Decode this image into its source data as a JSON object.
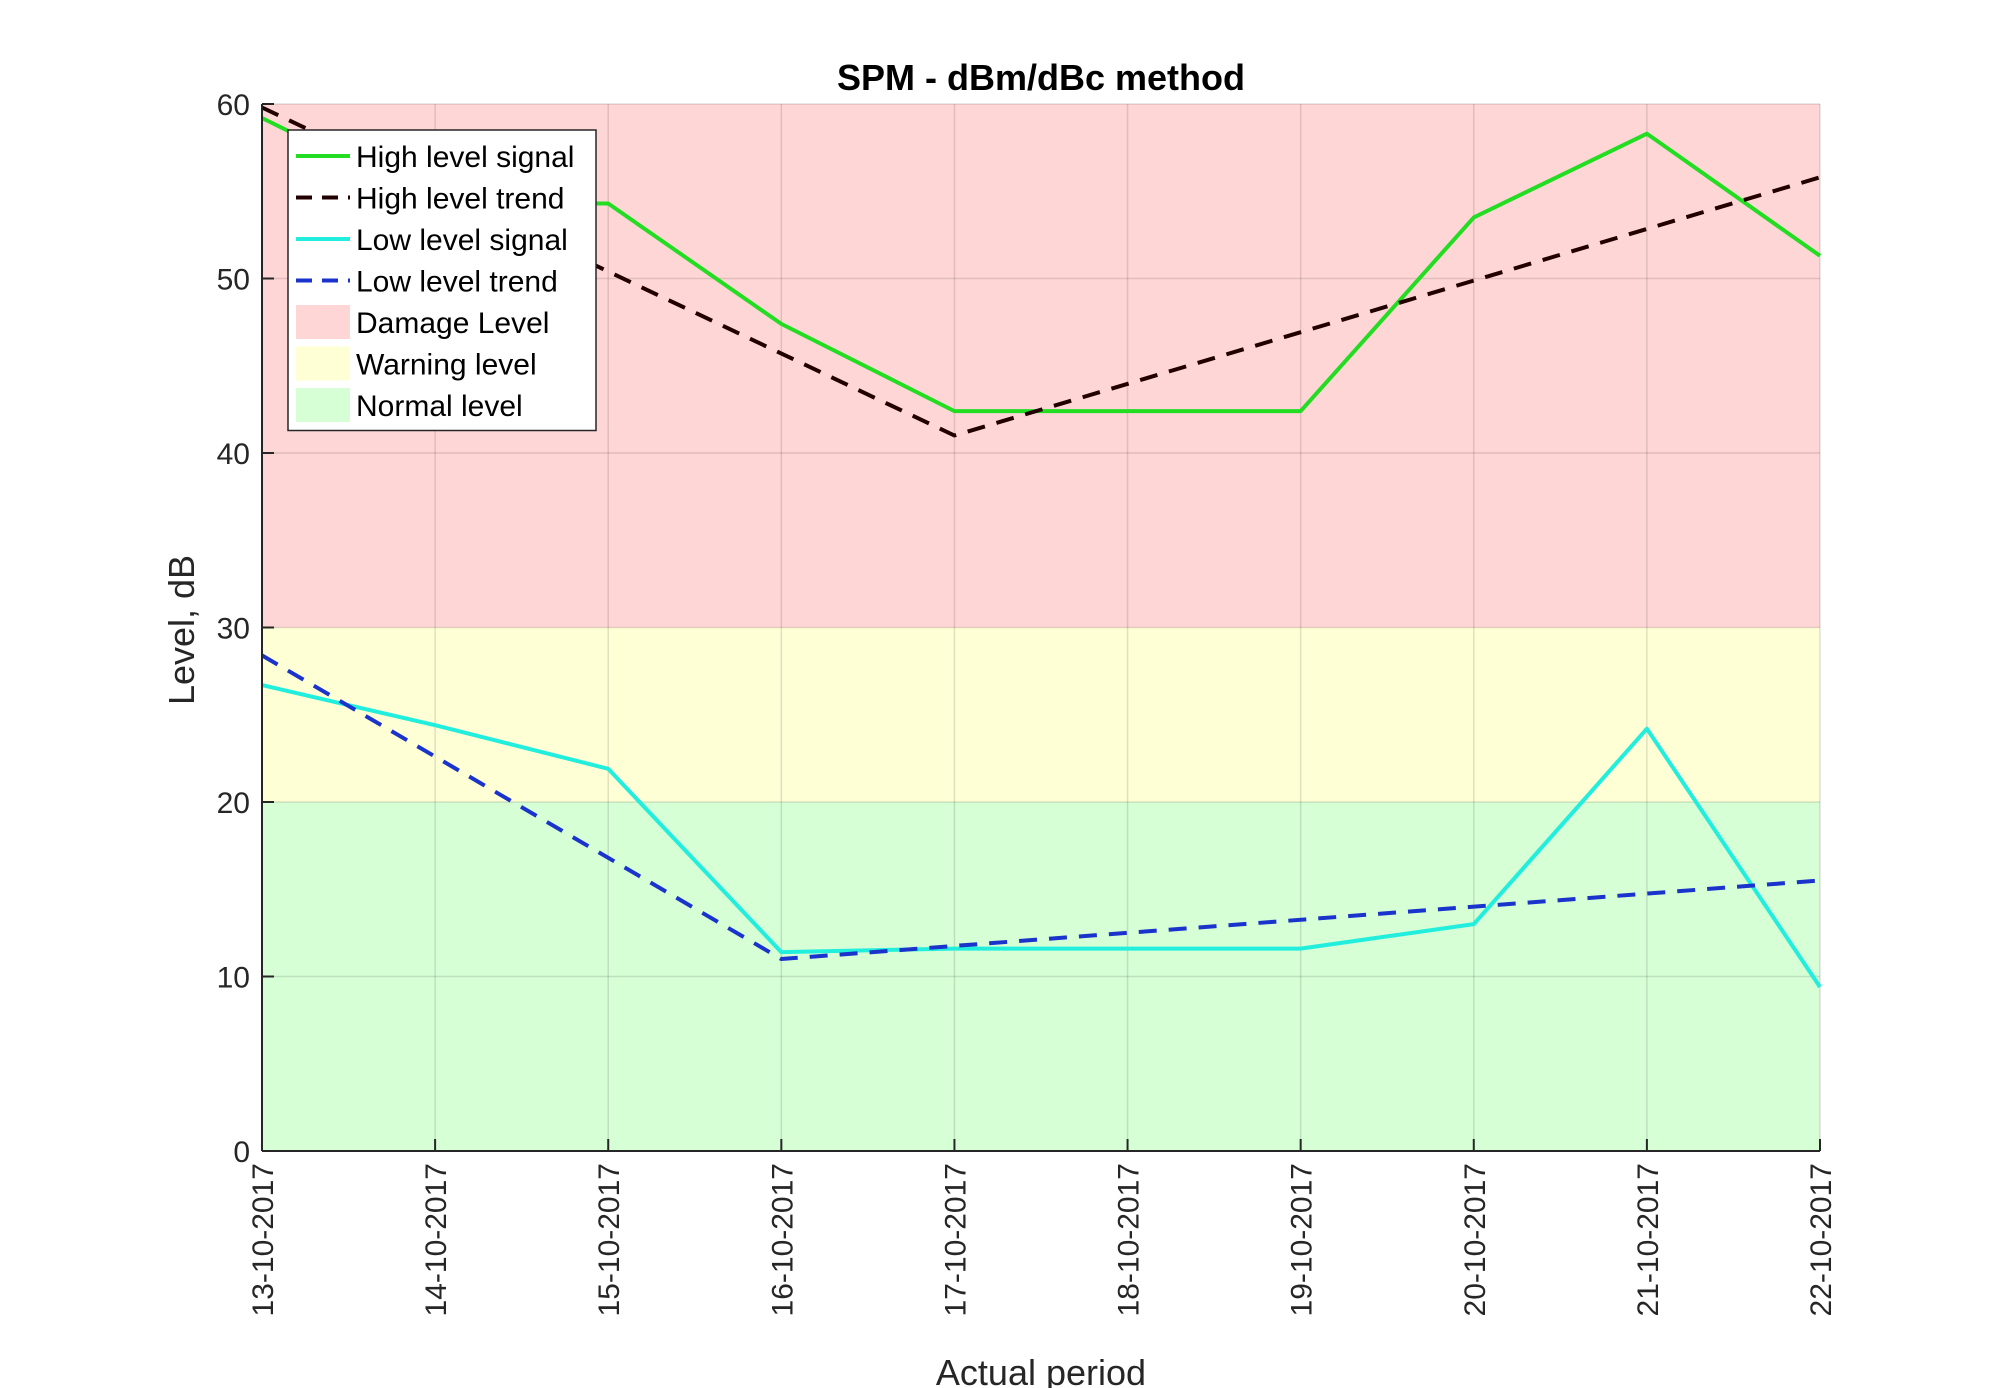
{
  "chart_data": {
    "type": "line",
    "title": "SPM - dBm/dBc method",
    "xlabel": "Actual period",
    "ylabel": "Level, dB",
    "ylim": [
      0,
      60
    ],
    "yticks": [
      "0",
      "10",
      "20",
      "30",
      "40",
      "50",
      "60"
    ],
    "categories": [
      "13-10-2017",
      "14-10-2017",
      "15-10-2017",
      "16-10-2017",
      "17-10-2017",
      "18-10-2017",
      "19-10-2017",
      "20-10-2017",
      "21-10-2017",
      "22-10-2017"
    ],
    "grid": true,
    "legend_position": "top-left",
    "bands": [
      {
        "name": "Damage Level",
        "from": 30,
        "to": 60,
        "color": "#ffd6d6"
      },
      {
        "name": "Warning level",
        "from": 20,
        "to": 30,
        "color": "#ffffd6"
      },
      {
        "name": "Normal level",
        "from": 0,
        "to": 20,
        "color": "#d6ffd6"
      }
    ],
    "series": [
      {
        "name": "High level signal",
        "color": "#22dd22",
        "style": "solid",
        "x": [
          "13-10-2017",
          "14-10-2017",
          "15-10-2017",
          "16-10-2017",
          "17-10-2017",
          "19-10-2017",
          "20-10-2017",
          "21-10-2017",
          "22-10-2017"
        ],
        "values": [
          59.2,
          54.3,
          54.3,
          47.4,
          42.4,
          42.4,
          53.5,
          58.3,
          51.3
        ]
      },
      {
        "name": "High level trend",
        "color": "#220000",
        "style": "dashed",
        "x": [
          "13-10-2017",
          "17-10-2017",
          "22-10-2017"
        ],
        "values": [
          59.8,
          41.0,
          55.8
        ]
      },
      {
        "name": "Low level signal",
        "color": "#22eedd",
        "style": "solid",
        "x": [
          "13-10-2017",
          "14-10-2017",
          "15-10-2017",
          "16-10-2017",
          "17-10-2017",
          "19-10-2017",
          "20-10-2017",
          "21-10-2017",
          "22-10-2017"
        ],
        "values": [
          26.7,
          24.4,
          21.9,
          11.4,
          11.6,
          11.6,
          13.0,
          24.2,
          9.4
        ]
      },
      {
        "name": "Low level trend",
        "color": "#1a33cc",
        "style": "dashed",
        "x": [
          "13-10-2017",
          "16-10-2017",
          "22-10-2017"
        ],
        "values": [
          28.4,
          11.0,
          15.5
        ]
      }
    ]
  }
}
